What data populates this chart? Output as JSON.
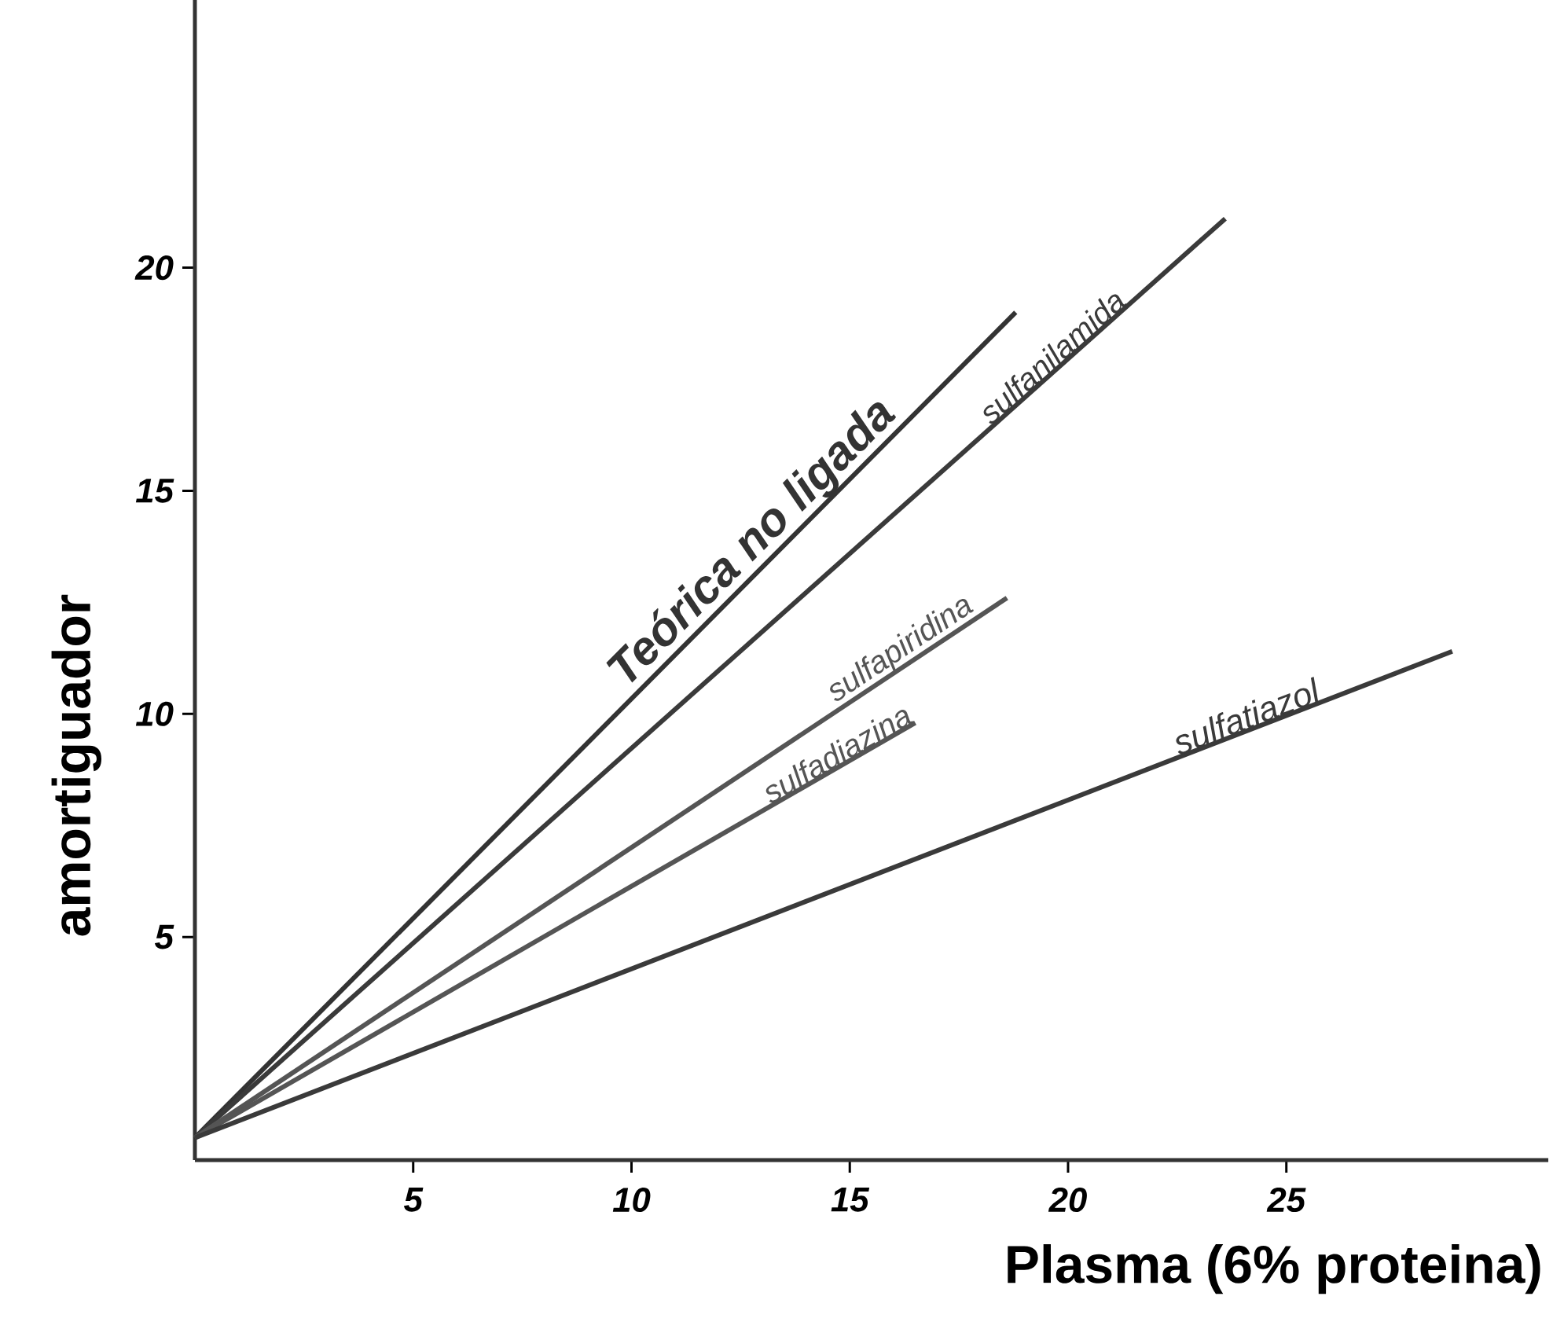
{
  "chart_data": {
    "type": "line",
    "xlabel": "Plasma (6% proteina)",
    "ylabel": "amortiguador",
    "xlim": [
      0,
      31
    ],
    "ylim": [
      0,
      26
    ],
    "xticks": [
      5,
      10,
      15,
      20,
      25
    ],
    "yticks": [
      5,
      10,
      15,
      20
    ],
    "line_style": "solid",
    "series": [
      {
        "name": "Teórica no ligada",
        "color": "#333333",
        "x": [
          0,
          18.8
        ],
        "values": [
          0.5,
          19
        ]
      },
      {
        "name": "sulfanilamida",
        "color": "#3a3a3a",
        "x": [
          0,
          23.6
        ],
        "values": [
          0.5,
          21.1
        ]
      },
      {
        "name": "sulfapiridina",
        "color": "#555555",
        "x": [
          0,
          18.6
        ],
        "values": [
          0.5,
          12.6
        ]
      },
      {
        "name": "sulfadiazina",
        "color": "#555555",
        "x": [
          0,
          16.5
        ],
        "values": [
          0.5,
          9.8
        ]
      },
      {
        "name": "sulfatiazol",
        "color": "#3a3a3a",
        "x": [
          0,
          28.8
        ],
        "values": [
          0.5,
          11.4
        ]
      }
    ]
  }
}
